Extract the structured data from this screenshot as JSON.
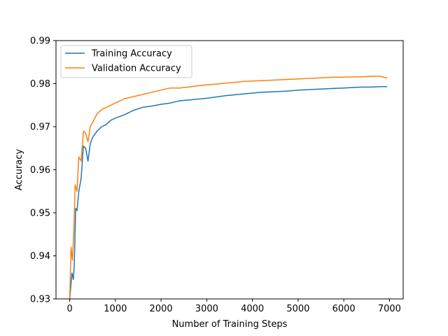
{
  "chart_data": {
    "type": "line",
    "title": "",
    "xlabel": "Number of Training Steps",
    "ylabel": "Accuracy",
    "xlim": [
      -300,
      7300
    ],
    "ylim": [
      0.93,
      0.99
    ],
    "xticks": [
      0,
      1000,
      2000,
      3000,
      4000,
      5000,
      6000,
      7000
    ],
    "xtick_labels": [
      "0",
      "1000",
      "2000",
      "3000",
      "4000",
      "5000",
      "6000",
      "7000"
    ],
    "yticks": [
      0.93,
      0.94,
      0.95,
      0.96,
      0.97,
      0.98,
      0.99
    ],
    "ytick_labels": [
      "0.93",
      "0.94",
      "0.95",
      "0.96",
      "0.97",
      "0.98",
      "0.99"
    ],
    "grid": false,
    "legend": {
      "position": "top-left"
    },
    "series": [
      {
        "name": "Training Accuracy",
        "color": "#1f77b4",
        "x": [
          0,
          50,
          80,
          100,
          130,
          160,
          200,
          250,
          300,
          350,
          400,
          450,
          500,
          600,
          700,
          800,
          900,
          1000,
          1200,
          1400,
          1600,
          1800,
          2000,
          2200,
          2400,
          2600,
          2800,
          3000,
          3200,
          3400,
          3600,
          3800,
          4000,
          4200,
          4400,
          4600,
          4800,
          5000,
          5200,
          5400,
          5600,
          5800,
          6000,
          6200,
          6400,
          6600,
          6800,
          6950
        ],
        "y": [
          0.929,
          0.936,
          0.9345,
          0.938,
          0.951,
          0.9505,
          0.955,
          0.958,
          0.9655,
          0.965,
          0.962,
          0.966,
          0.9675,
          0.969,
          0.97,
          0.9705,
          0.9715,
          0.972,
          0.9728,
          0.9738,
          0.9745,
          0.9748,
          0.9752,
          0.9755,
          0.976,
          0.9762,
          0.9764,
          0.9766,
          0.9769,
          0.9772,
          0.9774,
          0.9776,
          0.9778,
          0.978,
          0.9781,
          0.9782,
          0.9783,
          0.9785,
          0.9786,
          0.9787,
          0.9788,
          0.9789,
          0.979,
          0.9791,
          0.9792,
          0.9792,
          0.9793,
          0.9793
        ]
      },
      {
        "name": "Validation Accuracy",
        "color": "#ff7f0e",
        "x": [
          0,
          30,
          60,
          90,
          120,
          160,
          200,
          250,
          300,
          350,
          400,
          450,
          500,
          600,
          700,
          800,
          900,
          1000,
          1200,
          1400,
          1600,
          1800,
          2000,
          2200,
          2400,
          2600,
          2800,
          3000,
          3200,
          3400,
          3600,
          3800,
          4000,
          4200,
          4400,
          4600,
          4800,
          5000,
          5200,
          5400,
          5600,
          5800,
          6000,
          6200,
          6400,
          6600,
          6800,
          6950
        ],
        "y": [
          0.93,
          0.942,
          0.939,
          0.946,
          0.9565,
          0.955,
          0.963,
          0.962,
          0.969,
          0.9685,
          0.9665,
          0.97,
          0.971,
          0.973,
          0.974,
          0.9745,
          0.975,
          0.9755,
          0.9765,
          0.977,
          0.9775,
          0.978,
          0.9785,
          0.979,
          0.979,
          0.9792,
          0.9795,
          0.9797,
          0.9799,
          0.9801,
          0.9803,
          0.9805,
          0.9806,
          0.9807,
          0.9808,
          0.9809,
          0.981,
          0.9811,
          0.9812,
          0.9813,
          0.9814,
          0.9815,
          0.9815,
          0.9816,
          0.9816,
          0.9817,
          0.9817,
          0.9813
        ]
      }
    ]
  }
}
